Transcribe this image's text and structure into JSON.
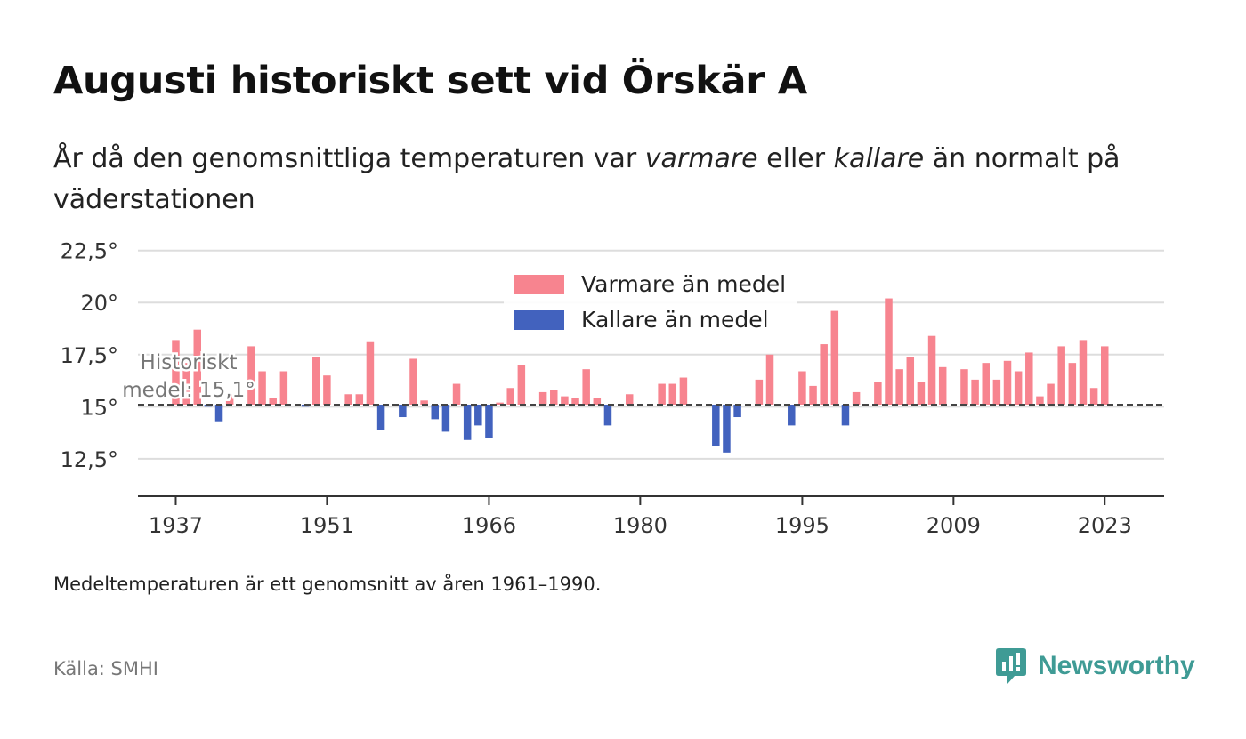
{
  "title": "Augusti historiskt sett vid Örskär A",
  "subtitle": {
    "part1": "År då den genomsnittliga temperaturen var ",
    "warm_word": "varmare",
    "part2": " eller ",
    "cold_word": "kallare",
    "part3": " än normalt på väderstationen"
  },
  "note": "Medeltemperaturen är ett genomsnitt av åren 1961–1990.",
  "source": "Källa: SMHI",
  "brand": {
    "name": "Newsworthy",
    "logo_icon": "newsworthy-logo-icon",
    "color": "#3f9b95"
  },
  "chart_data": {
    "type": "bar",
    "baseline": 15.1,
    "baseline_label_line1": "Historiskt",
    "baseline_label_line2": "medel: 15,1°",
    "ylim": [
      10.7,
      23
    ],
    "xlim": [
      1933.5,
      2028.5
    ],
    "y_ticks": [
      12.5,
      15,
      17.5,
      20,
      22.5
    ],
    "y_tick_labels": [
      "12,5°",
      "15°",
      "17,5°",
      "20°",
      "22,5°"
    ],
    "x_ticks": [
      1937,
      1951,
      1966,
      1980,
      1995,
      2009,
      2023
    ],
    "x_tick_labels": [
      "1937",
      "1951",
      "1966",
      "1980",
      "1995",
      "2009",
      "2023"
    ],
    "grid": true,
    "legend_position": "top-center",
    "colors": {
      "warm": "#f7848f",
      "cold": "#4262be",
      "baseline": "#444444",
      "grid": "#dddddd",
      "axis": "#333333"
    },
    "series": [
      {
        "name": "Varmare än medel",
        "color": "#f7848f"
      },
      {
        "name": "Kallare än medel",
        "color": "#4262be"
      }
    ],
    "x": [
      1937,
      1938,
      1939,
      1940,
      1941,
      1942,
      1943,
      1944,
      1945,
      1946,
      1947,
      1948,
      1949,
      1950,
      1951,
      1952,
      1953,
      1954,
      1955,
      1956,
      1957,
      1958,
      1959,
      1960,
      1961,
      1962,
      1963,
      1964,
      1965,
      1966,
      1967,
      1968,
      1969,
      1970,
      1971,
      1972,
      1973,
      1974,
      1975,
      1976,
      1977,
      1978,
      1979,
      1980,
      1981,
      1982,
      1983,
      1984,
      1985,
      1986,
      1987,
      1988,
      1989,
      1990,
      1991,
      1992,
      1993,
      1994,
      1995,
      1996,
      1997,
      1998,
      1999,
      2000,
      2001,
      2002,
      2003,
      2004,
      2005,
      2006,
      2007,
      2008,
      2009,
      2010,
      2011,
      2012,
      2013,
      2014,
      2015,
      2016,
      2017,
      2018,
      2019,
      2020,
      2021,
      2022,
      2023
    ],
    "values": [
      18.2,
      17.1,
      18.7,
      15.0,
      14.3,
      15.6,
      15.1,
      17.9,
      16.7,
      15.4,
      16.7,
      15.1,
      15.0,
      17.4,
      16.5,
      15.1,
      15.6,
      15.6,
      18.1,
      13.9,
      15.1,
      14.5,
      17.3,
      15.3,
      14.4,
      13.8,
      16.1,
      13.4,
      14.1,
      13.5,
      15.2,
      15.9,
      17.0,
      15.1,
      15.7,
      15.8,
      15.5,
      15.4,
      16.8,
      15.4,
      14.1,
      15.1,
      15.6,
      15.1,
      15.1,
      16.1,
      16.1,
      16.4,
      15.1,
      15.1,
      13.1,
      12.8,
      14.5,
      15.1,
      16.3,
      17.5,
      15.1,
      14.1,
      16.7,
      16.0,
      18.0,
      19.6,
      14.1,
      15.7,
      15.1,
      16.2,
      20.2,
      16.8,
      17.4,
      16.2,
      18.4,
      16.9,
      15.1,
      16.8,
      16.3,
      17.1,
      16.3,
      17.2,
      16.7,
      17.6,
      15.5,
      16.1,
      17.9,
      17.1,
      18.2,
      15.9,
      17.9
    ]
  }
}
